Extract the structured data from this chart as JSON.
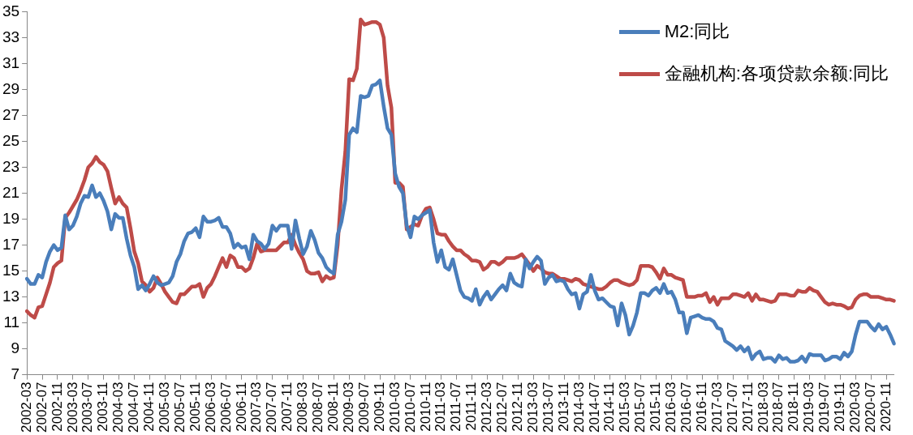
{
  "chart_data": {
    "type": "line",
    "categories": [
      "2002-03",
      null,
      null,
      null,
      "2002-07",
      null,
      null,
      null,
      "2002-11",
      null,
      null,
      null,
      "2003-03",
      null,
      null,
      null,
      "2003-07",
      null,
      null,
      null,
      "2003-11",
      null,
      null,
      null,
      "2004-03",
      null,
      null,
      null,
      "2004-07",
      null,
      null,
      null,
      "2004-11",
      null,
      null,
      null,
      "2005-03",
      null,
      null,
      null,
      "2005-07",
      null,
      null,
      null,
      "2005-11",
      null,
      null,
      null,
      "2006-03",
      null,
      null,
      null,
      "2006-07",
      null,
      null,
      null,
      "2006-11",
      null,
      null,
      null,
      "2007-03",
      null,
      null,
      null,
      "2007-07",
      null,
      null,
      null,
      "2007-11",
      null,
      null,
      null,
      "2008-03",
      null,
      null,
      null,
      "2008-07",
      null,
      null,
      null,
      "2008-11",
      null,
      null,
      null,
      "2009-03",
      null,
      null,
      null,
      "2009-07",
      null,
      null,
      null,
      "2009-11",
      null,
      null,
      null,
      "2010-03",
      null,
      null,
      null,
      "2010-07",
      null,
      null,
      null,
      "2010-11",
      null,
      null,
      null,
      "2011-03",
      null,
      null,
      null,
      "2011-07",
      null,
      null,
      null,
      "2011-11",
      null,
      null,
      null,
      "2012-03",
      null,
      null,
      null,
      "2012-07",
      null,
      null,
      null,
      "2012-11",
      null,
      null,
      null,
      "2013-03",
      null,
      null,
      null,
      "2013-07",
      null,
      null,
      null,
      "2013-11",
      null,
      null,
      null,
      "2014-03",
      null,
      null,
      null,
      "2014-07",
      null,
      null,
      null,
      "2014-11",
      null,
      null,
      null,
      "2015-03",
      null,
      null,
      null,
      "2015-07",
      null,
      null,
      null,
      "2015-11",
      null,
      null,
      null,
      "2016-03",
      null,
      null,
      null,
      "2016-07",
      null,
      null,
      null,
      "2016-11",
      null,
      null,
      null,
      "2017-03",
      null,
      null,
      null,
      "2017-07",
      null,
      null,
      null,
      "2017-11",
      null,
      null,
      null,
      "2018-03",
      null,
      null,
      null,
      "2018-07",
      null,
      null,
      null,
      "2018-11",
      null,
      null,
      null,
      "2019-03",
      null,
      null,
      null,
      "2019-07",
      null,
      null,
      null,
      "2019-11",
      null,
      null,
      null,
      "2020-03",
      null,
      null,
      null,
      "2020-07",
      null,
      null,
      null,
      "2020-11",
      null,
      null
    ],
    "series": [
      {
        "name": "M2:同比",
        "color": "#4a7ebb",
        "values": [
          14.4,
          14.0,
          14.0,
          14.7,
          14.5,
          15.7,
          16.5,
          17.0,
          16.6,
          16.8,
          19.3,
          18.2,
          18.5,
          19.2,
          20.2,
          20.8,
          20.7,
          21.6,
          20.7,
          21.0,
          20.4,
          19.6,
          18.2,
          19.4,
          19.1,
          19.1,
          17.5,
          16.2,
          15.3,
          13.6,
          13.9,
          13.5,
          14.0,
          14.6,
          14.1,
          13.9,
          14.0,
          14.1,
          14.6,
          15.7,
          16.3,
          17.3,
          17.9,
          18.0,
          18.3,
          17.6,
          19.2,
          18.8,
          18.8,
          18.9,
          19.1,
          18.4,
          18.4,
          17.9,
          16.8,
          17.1,
          16.8,
          16.9,
          15.9,
          17.8,
          17.3,
          17.1,
          16.7,
          17.1,
          18.5,
          18.1,
          18.5,
          18.5,
          18.5,
          16.7,
          18.9,
          17.5,
          16.3,
          16.9,
          18.1,
          17.4,
          16.4,
          16.0,
          15.3,
          15.0,
          14.8,
          17.8,
          18.8,
          20.5,
          25.5,
          26.0,
          25.7,
          28.5,
          28.4,
          28.5,
          29.3,
          29.4,
          29.7,
          27.7,
          26.0,
          25.5,
          22.5,
          21.5,
          21.0,
          18.5,
          17.6,
          19.2,
          19.0,
          19.3,
          19.5,
          19.7,
          17.2,
          15.7,
          16.6,
          15.3,
          15.1,
          15.9,
          14.7,
          13.5,
          13.0,
          12.9,
          12.7,
          13.6,
          12.4,
          13.0,
          13.4,
          12.8,
          13.2,
          13.6,
          13.9,
          13.5,
          14.8,
          14.1,
          13.9,
          13.8,
          15.9,
          15.2,
          15.7,
          16.1,
          15.8,
          14.0,
          14.5,
          14.7,
          14.2,
          14.3,
          14.2,
          13.6,
          13.2,
          13.3,
          12.1,
          13.2,
          13.4,
          14.7,
          13.5,
          12.8,
          12.9,
          12.6,
          12.3,
          12.2,
          10.8,
          12.5,
          11.6,
          10.1,
          10.8,
          11.8,
          13.3,
          13.3,
          13.1,
          13.5,
          13.7,
          13.3,
          14.0,
          13.3,
          13.4,
          12.8,
          11.8,
          11.8,
          10.2,
          11.4,
          11.5,
          11.6,
          11.4,
          11.3,
          11.3,
          11.1,
          10.6,
          10.5,
          9.6,
          9.4,
          9.2,
          8.9,
          9.2,
          8.8,
          9.1,
          8.2,
          8.6,
          8.8,
          8.2,
          8.3,
          8.3,
          8.0,
          8.5,
          8.2,
          8.3,
          8.0,
          8.0,
          8.1,
          8.4,
          8.0,
          8.6,
          8.5,
          8.5,
          8.5,
          8.1,
          8.2,
          8.4,
          8.4,
          8.2,
          8.7,
          8.4,
          8.8,
          10.1,
          11.1,
          11.1,
          11.1,
          10.7,
          10.4,
          10.9,
          10.5,
          10.7,
          10.1,
          9.4
        ]
      },
      {
        "name": "金融机构:各项贷款余额:同比",
        "color": "#be4b48",
        "values": [
          11.9,
          11.6,
          11.4,
          12.2,
          12.3,
          13.2,
          14.1,
          15.3,
          15.6,
          15.8,
          19.1,
          19.5,
          20.0,
          20.5,
          21.2,
          22.0,
          23.0,
          23.3,
          23.8,
          23.4,
          23.2,
          22.7,
          21.4,
          20.2,
          20.7,
          20.2,
          19.9,
          18.3,
          16.5,
          15.6,
          14.2,
          13.9,
          13.4,
          13.7,
          14.5,
          14.0,
          13.4,
          13.0,
          12.6,
          12.5,
          13.2,
          13.2,
          13.5,
          13.8,
          13.8,
          14.0,
          13.0,
          13.7,
          14.0,
          14.6,
          15.3,
          16.0,
          15.3,
          16.2,
          16.0,
          15.3,
          15.3,
          15.0,
          15.2,
          16.0,
          17.1,
          16.5,
          16.6,
          16.6,
          16.6,
          16.6,
          16.9,
          17.2,
          17.2,
          17.8,
          17.0,
          16.4,
          15.9,
          15.0,
          14.8,
          14.8,
          14.9,
          14.2,
          14.6,
          14.4,
          14.5,
          17.0,
          21.3,
          24.2,
          29.8,
          29.7,
          30.6,
          34.4,
          34.0,
          34.1,
          34.2,
          34.2,
          34.0,
          33.0,
          29.3,
          27.6,
          21.8,
          21.8,
          21.5,
          18.2,
          18.4,
          18.6,
          18.5,
          19.3,
          19.8,
          19.9,
          19.0,
          17.9,
          17.8,
          17.8,
          17.3,
          16.9,
          16.6,
          16.6,
          16.3,
          16.1,
          15.8,
          15.8,
          15.7,
          15.1,
          15.3,
          15.7,
          15.7,
          15.5,
          15.7,
          16.0,
          16.0,
          16.0,
          16.1,
          16.3,
          15.9,
          15.5,
          15.0,
          15.4,
          15.2,
          14.9,
          14.8,
          14.8,
          14.6,
          14.4,
          14.4,
          14.3,
          14.2,
          14.4,
          14.3,
          14.0,
          13.9,
          13.8,
          13.7,
          13.6,
          13.6,
          13.8,
          14.1,
          14.3,
          14.3,
          14.1,
          14.0,
          13.9,
          14.0,
          14.3,
          15.4,
          15.4,
          15.4,
          15.3,
          14.9,
          14.4,
          15.2,
          14.7,
          14.7,
          14.5,
          14.4,
          14.3,
          13.0,
          13.0,
          13.0,
          13.1,
          13.1,
          13.3,
          12.6,
          13.0,
          12.4,
          12.9,
          12.9,
          12.9,
          13.2,
          13.2,
          13.1,
          13.0,
          13.3,
          12.7,
          13.2,
          12.8,
          12.8,
          12.7,
          12.6,
          12.7,
          13.2,
          13.2,
          13.2,
          13.1,
          13.1,
          13.5,
          13.4,
          13.4,
          13.7,
          13.5,
          13.4,
          13.0,
          12.6,
          12.4,
          12.5,
          12.4,
          12.4,
          12.3,
          12.1,
          12.2,
          12.8,
          13.1,
          13.2,
          13.2,
          13.0,
          13.0,
          13.0,
          12.9,
          12.8,
          12.8,
          12.7
        ]
      }
    ],
    "ylim": [
      7,
      35
    ],
    "yticks": [
      7,
      9,
      11,
      13,
      15,
      17,
      19,
      21,
      23,
      25,
      27,
      29,
      31,
      33,
      35
    ],
    "grid": false,
    "legend": "top right",
    "marker": "none",
    "line_style": "solid"
  }
}
